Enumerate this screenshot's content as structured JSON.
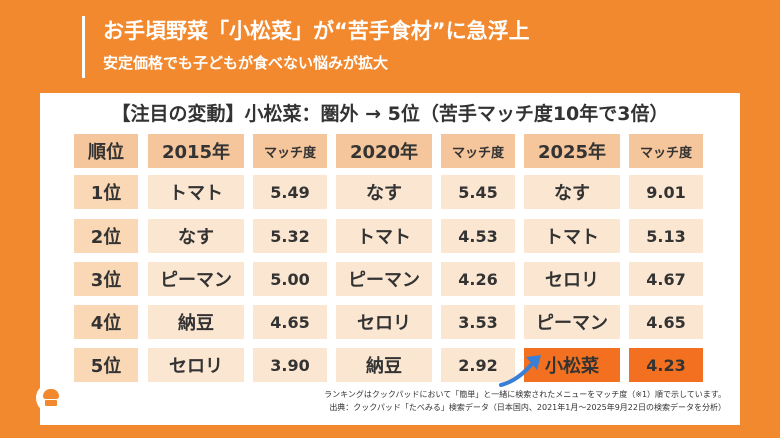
{
  "header": {
    "title": "お手頃野菜「小松菜」が“苦手食材”に急浮上",
    "subtitle": "安定価格でも子どもが食べない悩みが拡大"
  },
  "panel": {
    "title": "【注目の変動】小松菜：圏外 → 5位（苦手マッチ度10年で3倍）"
  },
  "table": {
    "headers": [
      "順位",
      "2015年",
      "マッチ度",
      "2020年",
      "マッチ度",
      "2025年",
      "マッチ度"
    ],
    "rows": [
      {
        "rank": "1位",
        "y2015": "トマト",
        "s2015": "5.49",
        "y2020": "なす",
        "s2020": "5.45",
        "y2025": "なす",
        "s2025": "9.01"
      },
      {
        "rank": "2位",
        "y2015": "なす",
        "s2015": "5.32",
        "y2020": "トマト",
        "s2020": "4.53",
        "y2025": "トマト",
        "s2025": "5.13"
      },
      {
        "rank": "3位",
        "y2015": "ピーマン",
        "s2015": "5.00",
        "y2020": "ピーマン",
        "s2020": "4.26",
        "y2025": "セロリ",
        "s2025": "4.67"
      },
      {
        "rank": "4位",
        "y2015": "納豆",
        "s2015": "4.65",
        "y2020": "セロリ",
        "s2020": "3.53",
        "y2025": "ピーマン",
        "s2025": "4.65"
      },
      {
        "rank": "5位",
        "y2015": "セロリ",
        "s2015": "3.90",
        "y2020": "納豆",
        "s2020": "2.92",
        "y2025": "小松菜",
        "s2025": "4.23"
      }
    ]
  },
  "footer": {
    "logo_text": "cookpad",
    "note1": "ランキングはクックパッドにおいて「簡単」と一緒に検索されたメニューをマッチ度（※1）順で示しています。",
    "note2": "出典：クックパッド「たべみる」検索データ（日本国内、2021年1月～2025年9月22日の検索データを分析）"
  },
  "colors": {
    "background": "#F2892F",
    "header_cell": "#F5C69B",
    "rank_cell": "#FAD8B5",
    "data_cell": "#FBE6D1",
    "highlight": "#F2701F",
    "arrow": "#3A7FD6"
  }
}
